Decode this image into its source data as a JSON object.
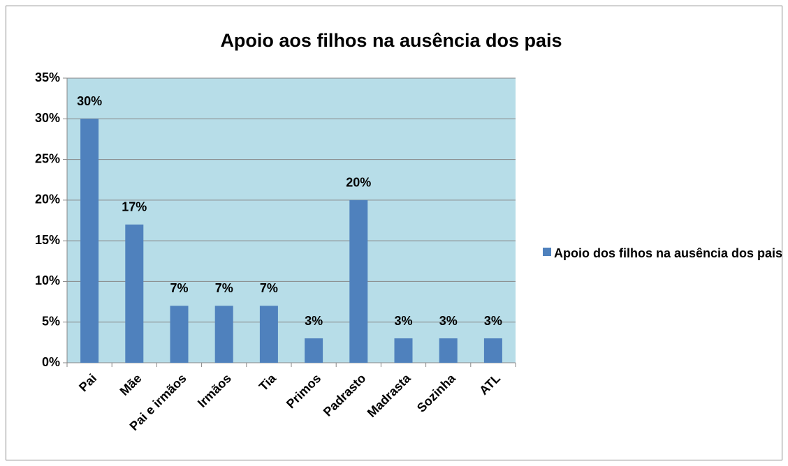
{
  "chart_data": {
    "type": "bar",
    "title": "Apoio aos filhos na ausência dos pais",
    "categories": [
      "Pai",
      "Mãe",
      "Pai e irmãos",
      "Irmãos",
      "Tia",
      "Primos",
      "Padrasto",
      "Madrasta",
      "Sozinha",
      "ATL"
    ],
    "series": [
      {
        "name": "Apoio dos filhos na ausência dos pais",
        "color": "#4f81bd",
        "values": [
          30,
          17,
          7,
          7,
          7,
          3,
          20,
          3,
          3,
          3
        ],
        "value_labels": [
          "30%",
          "17%",
          "7%",
          "7%",
          "7%",
          "3%",
          "20%",
          "3%",
          "3%",
          "3%"
        ]
      }
    ],
    "ylim": [
      0,
      35
    ],
    "yticks": [
      {
        "value": 0,
        "label": "0%"
      },
      {
        "value": 5,
        "label": "5%"
      },
      {
        "value": 10,
        "label": "10%"
      },
      {
        "value": 15,
        "label": "15%"
      },
      {
        "value": 20,
        "label": "20%"
      },
      {
        "value": 25,
        "label": "25%"
      },
      {
        "value": 30,
        "label": "30%"
      },
      {
        "value": 35,
        "label": "35%"
      }
    ],
    "grid": true,
    "legend": "right",
    "plot_background": "#b7dde8"
  }
}
